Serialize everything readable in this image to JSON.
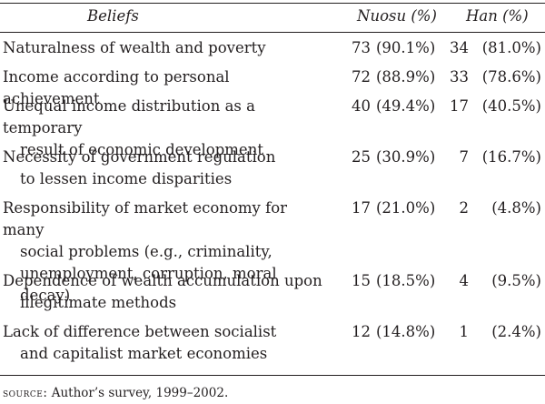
{
  "headers": {
    "beliefs": "Beliefs",
    "nuosu": "Nuosu (%)",
    "han": "Han (%)"
  },
  "rows": [
    {
      "lines": [
        "Naturalness of wealth and poverty"
      ],
      "nuosu_n": "73",
      "nuosu_p": "(90.1%)",
      "han_n": "34",
      "han_p": "(81.0%)"
    },
    {
      "lines": [
        "Income according to personal achievement"
      ],
      "nuosu_n": "72",
      "nuosu_p": "(88.9%)",
      "han_n": "33",
      "han_p": "(78.6%)"
    },
    {
      "lines": [
        "Unequal income distribution as a temporary",
        "result of economic development"
      ],
      "nuosu_n": "40",
      "nuosu_p": "(49.4%)",
      "han_n": "17",
      "han_p": "(40.5%)"
    },
    {
      "lines": [
        "Necessity of government regulation",
        "to lessen income disparities"
      ],
      "nuosu_n": "25",
      "nuosu_p": "(30.9%)",
      "han_n": "7",
      "han_p": "(16.7%)"
    },
    {
      "lines": [
        "Responsibility of market economy for many",
        "social problems (e.g., criminality,",
        "unemployment, corruption, moral decay)"
      ],
      "nuosu_n": "17",
      "nuosu_p": "(21.0%)",
      "han_n": "2",
      "han_p": "(4.8%)"
    },
    {
      "lines": [
        "Dependence of wealth accumulation upon",
        "illegitimate methods"
      ],
      "nuosu_n": "15",
      "nuosu_p": "(18.5%)",
      "han_n": "4",
      "han_p": "(9.5%)"
    },
    {
      "lines": [
        "Lack of difference between socialist",
        "and capitalist market economies"
      ],
      "nuosu_n": "12",
      "nuosu_p": "(14.8%)",
      "han_n": "1",
      "han_p": "(2.4%)"
    }
  ],
  "source": {
    "label": "source:",
    "text": " Author’s survey, 1999–2002."
  }
}
